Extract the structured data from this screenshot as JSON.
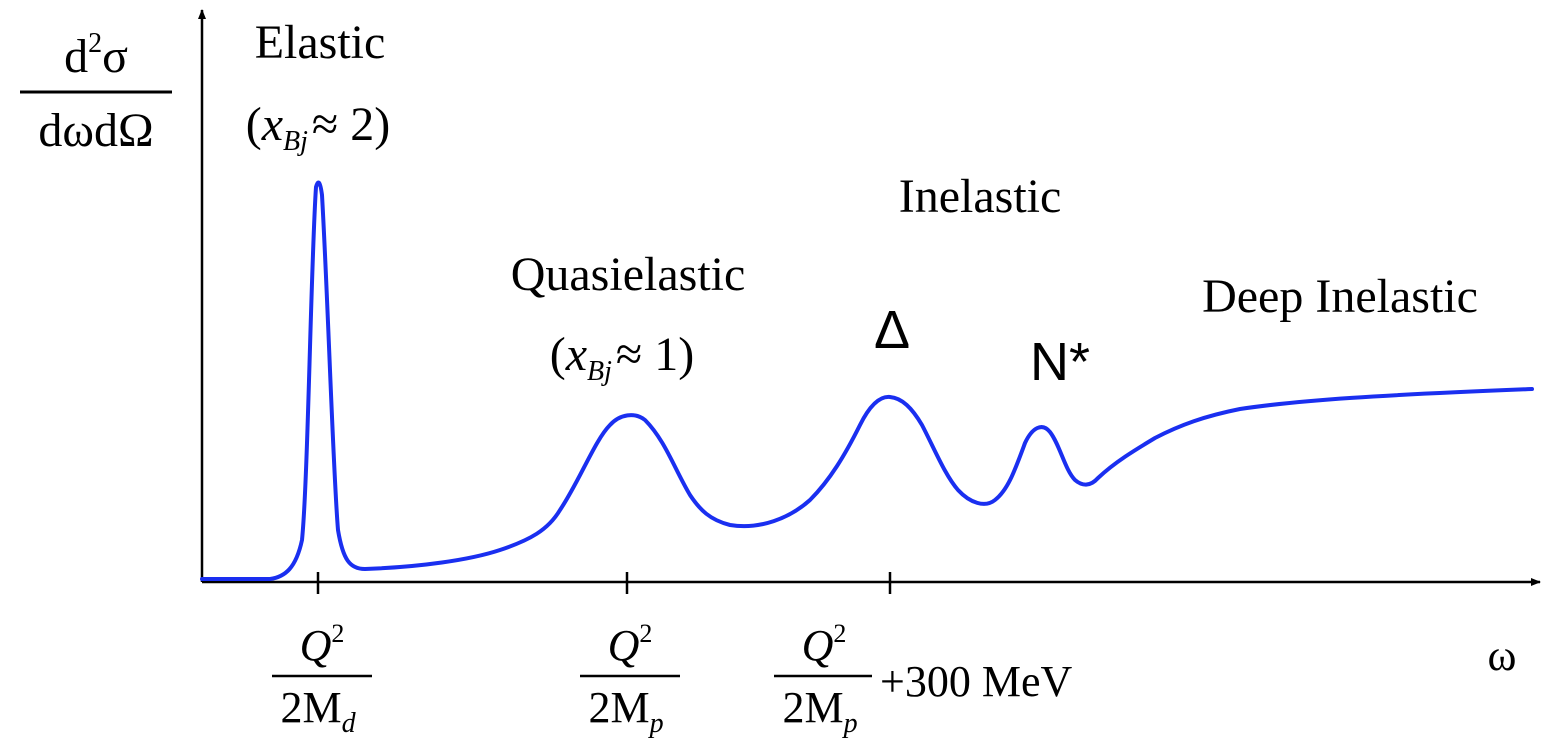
{
  "ylabel": {
    "numerator_base": "d",
    "numerator_exp": "2",
    "numerator_tail": "σ",
    "denominator": "dωdΩ"
  },
  "xlabel": "ω",
  "curve_color": "#1a2ff0",
  "regions": {
    "elastic": {
      "label": "Elastic",
      "sub_open": "(",
      "sub_var": "x",
      "sub_index": "Bj",
      "sub_rel": "≈ 2)"
    },
    "quasielastic": {
      "label": "Quasielastic",
      "sub_open": "(",
      "sub_var": "x",
      "sub_index": "Bj",
      "sub_rel": "≈ 1)"
    },
    "inelastic": {
      "label": "Inelastic"
    },
    "delta": {
      "label": "Δ"
    },
    "nstar": {
      "label": "N*"
    },
    "deep_inelastic": {
      "label": "Deep Inelastic"
    }
  },
  "ticks": [
    {
      "num": "Q",
      "num_exp": "2",
      "den": "2M",
      "den_sub": "d",
      "suffix": ""
    },
    {
      "num": "Q",
      "num_exp": "2",
      "den": "2M",
      "den_sub": "p",
      "suffix": ""
    },
    {
      "num": "Q",
      "num_exp": "2",
      "den": "2M",
      "den_sub": "p",
      "suffix": "+300 MeV"
    }
  ]
}
